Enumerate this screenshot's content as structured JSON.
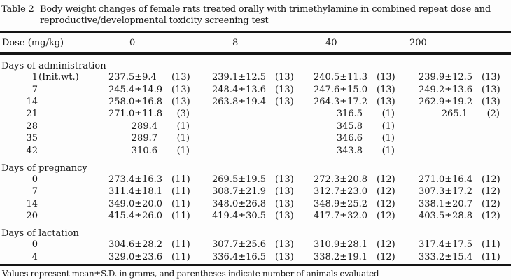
{
  "title": {
    "label": "Table 2",
    "line1": "Body weight changes of female rats treated orally with trimethylamine in combined repeat dose and",
    "line2": "reproductive/developmental toxicity screening test"
  },
  "header": {
    "dose_label": "Dose (mg/kg)",
    "doses": [
      "0",
      "8",
      "40",
      "200"
    ]
  },
  "table": {
    "rows": [
      {
        "type": "section",
        "label": "Days of administration"
      },
      {
        "type": "data",
        "day": "1",
        "suffix": "(Init.wt.)",
        "cells": [
          {
            "v": "237.5±9.4",
            "n": "(13)"
          },
          {
            "v": "239.1±12.5",
            "n": "(13)"
          },
          {
            "v": "240.5±11.3",
            "n": "(13)"
          },
          {
            "v": "239.9±12.5",
            "n": "(13)"
          }
        ]
      },
      {
        "type": "data",
        "day": "7",
        "suffix": "",
        "cells": [
          {
            "v": "245.4±14.9",
            "n": "(13)"
          },
          {
            "v": "248.4±13.6",
            "n": "(13)"
          },
          {
            "v": "247.6±15.0",
            "n": "(13)"
          },
          {
            "v": "249.2±13.6",
            "n": "(13)"
          }
        ]
      },
      {
        "type": "data",
        "day": "14",
        "suffix": "",
        "cells": [
          {
            "v": "258.0±16.8",
            "n": "(13)"
          },
          {
            "v": "263.8±19.4",
            "n": "(13)"
          },
          {
            "v": "264.3±17.2",
            "n": "(13)"
          },
          {
            "v": "262.9±19.2",
            "n": "(13)"
          }
        ]
      },
      {
        "type": "data",
        "day": "21",
        "suffix": "",
        "cells": [
          {
            "v": "271.0±11.8",
            "n": "(3)"
          },
          null,
          {
            "v": "316.5",
            "n": "(1)"
          },
          {
            "v": "265.1",
            "n": "(2)"
          }
        ]
      },
      {
        "type": "data",
        "day": "28",
        "suffix": "",
        "cells": [
          {
            "v": "289.4",
            "n": "(1)"
          },
          null,
          {
            "v": "345.8",
            "n": "(1)"
          },
          null
        ]
      },
      {
        "type": "data",
        "day": "35",
        "suffix": "",
        "cells": [
          {
            "v": "289.7",
            "n": "(1)"
          },
          null,
          {
            "v": "346.6",
            "n": "(1)"
          },
          null
        ]
      },
      {
        "type": "data",
        "day": "42",
        "suffix": "",
        "cells": [
          {
            "v": "310.6",
            "n": "(1)"
          },
          null,
          {
            "v": "343.8",
            "n": "(1)"
          },
          null
        ]
      },
      {
        "type": "section",
        "label": "Days of pregnancy"
      },
      {
        "type": "data",
        "day": "0",
        "suffix": "",
        "cells": [
          {
            "v": "273.4±16.3",
            "n": "(11)"
          },
          {
            "v": "269.5±19.5",
            "n": "(13)"
          },
          {
            "v": "272.3±20.8",
            "n": "(12)"
          },
          {
            "v": "271.0±16.4",
            "n": "(12)"
          }
        ]
      },
      {
        "type": "data",
        "day": "7",
        "suffix": "",
        "cells": [
          {
            "v": "311.4±18.1",
            "n": "(11)"
          },
          {
            "v": "308.7±21.9",
            "n": "(13)"
          },
          {
            "v": "312.7±23.0",
            "n": "(12)"
          },
          {
            "v": "307.3±17.2",
            "n": "(12)"
          }
        ]
      },
      {
        "type": "data",
        "day": "14",
        "suffix": "",
        "cells": [
          {
            "v": "349.0±20.0",
            "n": "(11)"
          },
          {
            "v": "348.0±26.8",
            "n": "(13)"
          },
          {
            "v": "348.9±25.2",
            "n": "(12)"
          },
          {
            "v": "338.1±20.7",
            "n": "(12)"
          }
        ]
      },
      {
        "type": "data",
        "day": "20",
        "suffix": "",
        "cells": [
          {
            "v": "415.4±26.0",
            "n": "(11)"
          },
          {
            "v": "419.4±30.5",
            "n": "(13)"
          },
          {
            "v": "417.7±32.0",
            "n": "(12)"
          },
          {
            "v": "403.5±28.8",
            "n": "(12)"
          }
        ]
      },
      {
        "type": "section",
        "label": "Days of lactation"
      },
      {
        "type": "data",
        "day": "0",
        "suffix": "",
        "cells": [
          {
            "v": "304.6±28.2",
            "n": "(11)"
          },
          {
            "v": "307.7±25.6",
            "n": "(13)"
          },
          {
            "v": "310.9±28.1",
            "n": "(12)"
          },
          {
            "v": "317.4±17.5",
            "n": "(11)"
          }
        ]
      },
      {
        "type": "data",
        "day": "4",
        "suffix": "",
        "cells": [
          {
            "v": "329.0±23.6",
            "n": "(11)"
          },
          {
            "v": "336.4±16.5",
            "n": "(13)"
          },
          {
            "v": "338.2±19.1",
            "n": "(12)"
          },
          {
            "v": "333.2±15.4",
            "n": "(11)"
          }
        ]
      }
    ]
  },
  "footnote": "Values represent mean±S.D. in grams, and parentheses indicate number of animals evaluated"
}
